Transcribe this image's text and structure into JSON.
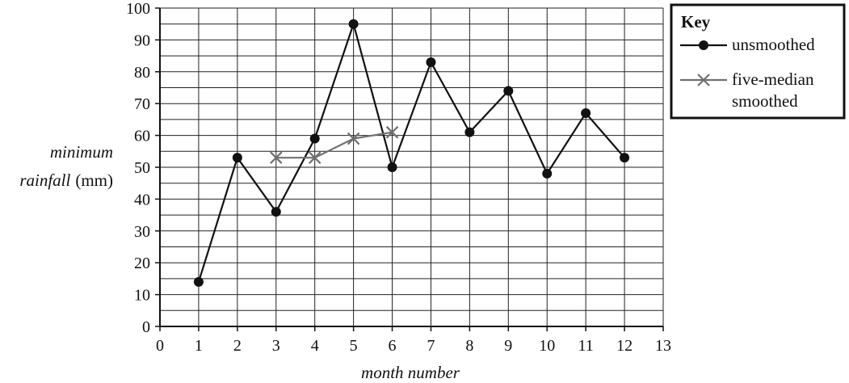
{
  "chart_data": {
    "type": "line",
    "xlabel": "month number",
    "ylabel_italic": "minimum",
    "ylabel_line2_italic": "rainfall",
    "ylabel_unit": "(mm)",
    "xlim": [
      0,
      13
    ],
    "ylim": [
      0,
      100
    ],
    "x_ticks": [
      "0",
      "1",
      "2",
      "3",
      "4",
      "5",
      "6",
      "7",
      "8",
      "9",
      "10",
      "11",
      "12",
      "13"
    ],
    "y_ticks": [
      "0",
      "10",
      "20",
      "30",
      "40",
      "50",
      "60",
      "70",
      "80",
      "90",
      "100"
    ],
    "grid": true,
    "legend_position": "right",
    "key_title": "Key",
    "series": [
      {
        "name": "unsmoothed",
        "marker": "circle",
        "color": "#111111",
        "x": [
          1,
          2,
          3,
          4,
          5,
          6,
          7,
          8,
          9,
          10,
          11,
          12
        ],
        "values": [
          14,
          53,
          36,
          59,
          95,
          50,
          83,
          61,
          74,
          48,
          67,
          53
        ]
      },
      {
        "name": "five-median smoothed",
        "name_line1": "five-median",
        "name_line2": "smoothed",
        "marker": "cross",
        "color": "#707070",
        "x": [
          3,
          4,
          5,
          6
        ],
        "values": [
          53,
          53,
          59,
          61
        ]
      }
    ]
  }
}
